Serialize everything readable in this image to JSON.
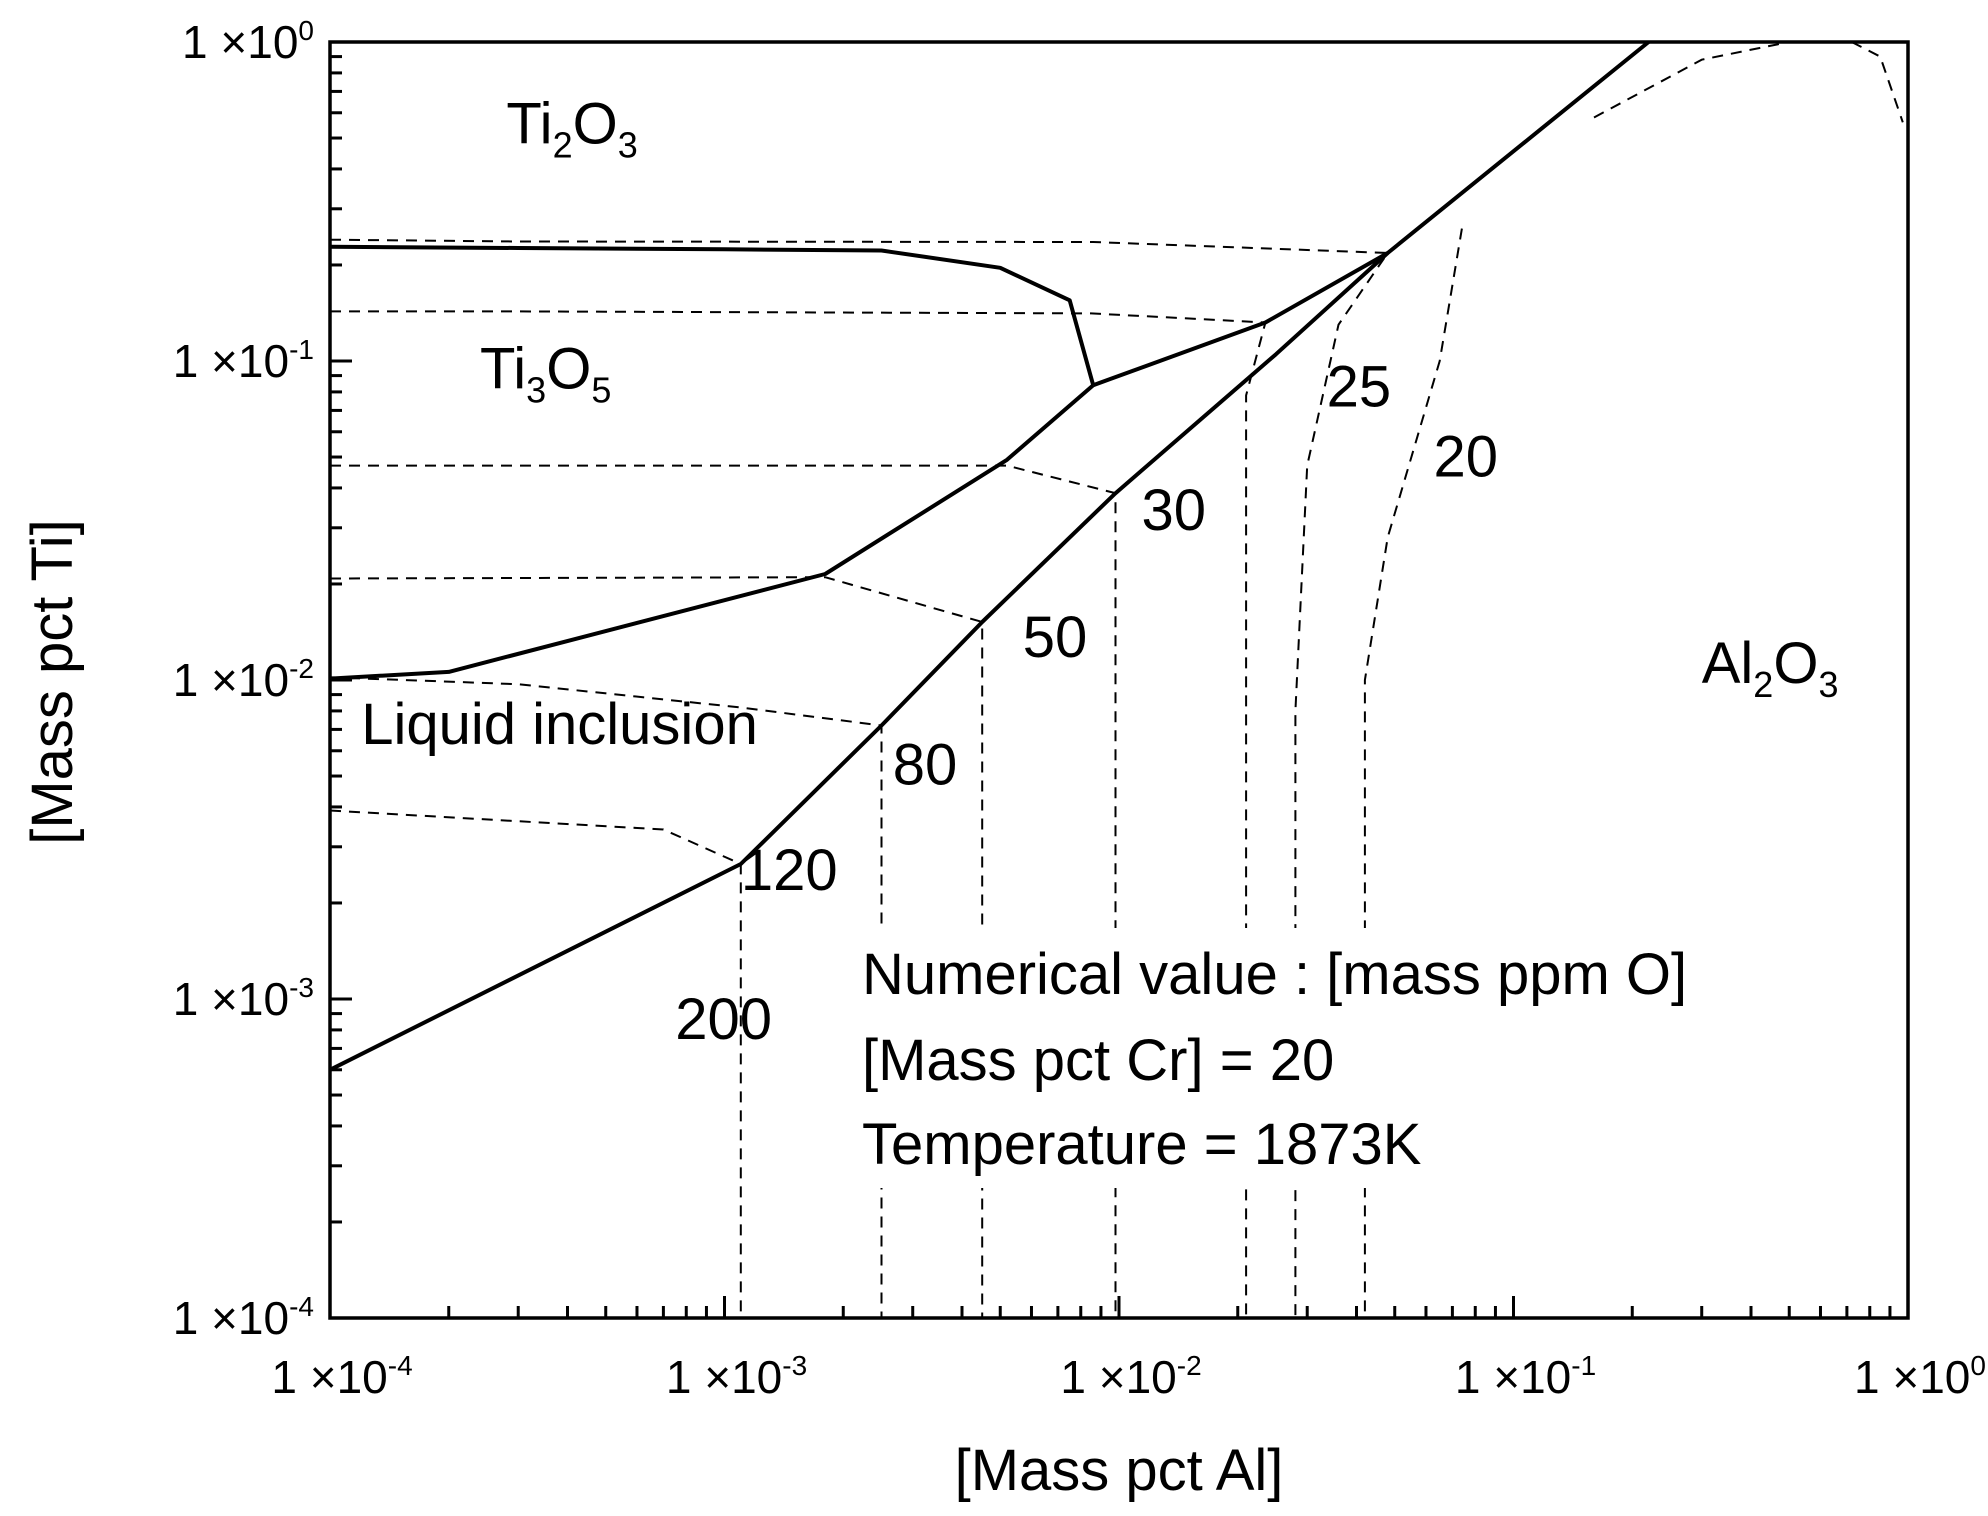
{
  "chart_data": {
    "type": "line",
    "subtype": "phase stability diagram (log-log)",
    "xlabel": "[Mass pct Al]",
    "ylabel": "[Mass pct Ti]",
    "xscale": "log",
    "yscale": "log",
    "xlim": [
      0.0001,
      1
    ],
    "ylim": [
      0.0001,
      1
    ],
    "x_tick_labels": [
      {
        "value": 0.0001,
        "mant": "1 ×10",
        "exp": "-4"
      },
      {
        "value": 0.001,
        "mant": "1 ×10",
        "exp": "-3"
      },
      {
        "value": 0.01,
        "mant": "1 ×10",
        "exp": "-2"
      },
      {
        "value": 0.1,
        "mant": "1 ×10",
        "exp": "-1"
      },
      {
        "value": 1,
        "mant": "1 ×10",
        "exp": "0"
      }
    ],
    "y_tick_labels": [
      {
        "value": 0.0001,
        "mant": "1 ×10",
        "exp": "-4"
      },
      {
        "value": 0.001,
        "mant": "1 ×10",
        "exp": "-3"
      },
      {
        "value": 0.01,
        "mant": "1 ×10",
        "exp": "-2"
      },
      {
        "value": 0.1,
        "mant": "1 ×10",
        "exp": "-1"
      },
      {
        "value": 1,
        "mant": "1 ×10",
        "exp": "0"
      }
    ],
    "regions": [
      {
        "name": "Ti2O3",
        "parts": [
          "Ti",
          "2",
          "O",
          "3"
        ],
        "x": 0.00028,
        "y": 0.48
      },
      {
        "name": "Ti3O5",
        "parts": [
          "Ti",
          "3",
          "O",
          "5"
        ],
        "x": 0.00024,
        "y": 0.082
      },
      {
        "name": "Al2O3",
        "parts": [
          "Al",
          "2",
          "O",
          "3"
        ],
        "x": 0.3,
        "y": 0.0098
      },
      {
        "name": "Liquid inclusion",
        "parts": [
          "Liquid inclusion"
        ],
        "x": 0.00012,
        "y": 0.0063
      }
    ],
    "phase_boundaries": [
      {
        "name": "Ti2O3/Ti3O5",
        "x": [
          0.0001,
          0.0003,
          0.001,
          0.0025,
          0.005,
          0.0075,
          0.0086
        ],
        "y": [
          0.228,
          0.226,
          0.224,
          0.222,
          0.196,
          0.155,
          0.084
        ]
      },
      {
        "name": "Ti3O5/Al2O3",
        "x": [
          0.0086,
          0.0235,
          0.048
        ],
        "y": [
          0.084,
          0.132,
          0.218
        ]
      },
      {
        "name": "Ti3O5/Liquid",
        "x": [
          0.0001,
          0.0002,
          0.0018,
          0.0052,
          0.0086
        ],
        "y": [
          0.0101,
          0.0106,
          0.0215,
          0.049,
          0.084
        ]
      },
      {
        "name": "Liquid/Al2O3",
        "x": [
          0.0001,
          0.0011,
          0.0025,
          0.0045,
          0.0098,
          0.025,
          0.048,
          0.22
        ],
        "y": [
          0.0006,
          0.00265,
          0.0072,
          0.0152,
          0.0385,
          0.105,
          0.218,
          1.0
        ]
      }
    ],
    "iso_oxygen_lines": [
      {
        "label": "200",
        "x": [
          0.0001,
          0.0007,
          0.0011,
          0.0011
        ],
        "y": [
          0.0039,
          0.0034,
          0.00265,
          0.0001
        ]
      },
      {
        "label": "120",
        "x": [
          0.0001,
          0.0003,
          0.0011,
          0.0025,
          0.0025
        ],
        "y": [
          0.0102,
          0.0097,
          0.0082,
          0.0072,
          0.0001
        ]
      },
      {
        "label": "80",
        "x": [
          0.0001,
          0.0018,
          0.0045,
          0.0045
        ],
        "y": [
          0.0208,
          0.021,
          0.0152,
          0.0001
        ]
      },
      {
        "label": "50",
        "x": [
          0.0001,
          0.0018,
          0.0052,
          0.0098,
          0.0098
        ],
        "y": [
          0.047,
          0.047,
          0.047,
          0.0385,
          0.0001
        ]
      },
      {
        "label": "30",
        "x": [
          0.0001,
          0.0003,
          0.0085,
          0.0235,
          0.021,
          0.021
        ],
        "y": [
          0.143,
          0.143,
          0.141,
          0.132,
          0.078,
          0.0001
        ]
      },
      {
        "label": "25",
        "x": [
          0.0001,
          0.0003,
          0.0086,
          0.048,
          0.036,
          0.03,
          0.028,
          0.028
        ],
        "y": [
          0.24,
          0.237,
          0.236,
          0.218,
          0.13,
          0.047,
          0.008,
          0.0001
        ]
      },
      {
        "label": "20",
        "x": [
          0.074,
          0.065,
          0.048,
          0.042,
          0.042
        ],
        "y": [
          0.26,
          0.1,
          0.028,
          0.01,
          0.0001
        ]
      },
      {
        "label": "",
        "x": [
          0.16,
          0.3,
          0.5
        ],
        "y": [
          0.58,
          0.88,
          1.0
        ]
      },
      {
        "label": "",
        "x": [
          0.72,
          0.85,
          0.97
        ],
        "y": [
          1.0,
          0.9,
          0.56
        ]
      }
    ],
    "iso_labels": [
      {
        "text": "200",
        "x": 0.00075,
        "y": 0.00075
      },
      {
        "text": "120",
        "x": 0.0011,
        "y": 0.0022
      },
      {
        "text": "80",
        "x": 0.00267,
        "y": 0.0047
      },
      {
        "text": "50",
        "x": 0.0057,
        "y": 0.0118
      },
      {
        "text": "30",
        "x": 0.0114,
        "y": 0.0295
      },
      {
        "text": "25",
        "x": 0.0336,
        "y": 0.072
      },
      {
        "text": "20",
        "x": 0.0627,
        "y": 0.0435
      }
    ],
    "annotation_lines": [
      "Numerical value : [mass ppm O]",
      "[Mass pct Cr] = 20",
      "Temperature = 1873K"
    ],
    "grid": false,
    "legend": "none"
  }
}
